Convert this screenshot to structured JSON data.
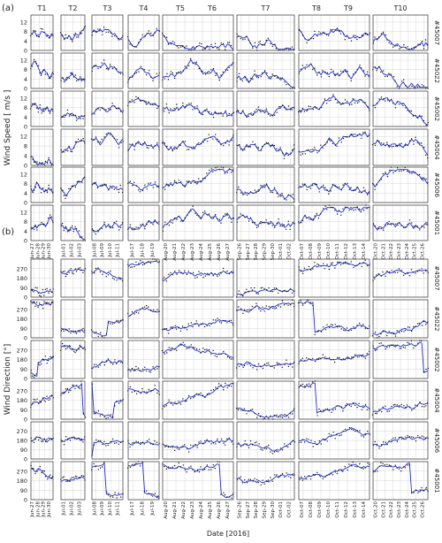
{
  "figure": {
    "panel_a_label": "(a)",
    "panel_b_label": "(b)",
    "xlabel": "Date [2016]"
  },
  "colors": {
    "model": "#1f2fd0",
    "observation": "#111111",
    "grid": "#d6d6d6",
    "frame": "#333333"
  },
  "chart_data": [
    {
      "type": "line",
      "panel": "(a)",
      "ylabel": "Wind Speed [ m/s ]",
      "yticks": [
        0,
        4,
        8,
        12
      ],
      "ylim": [
        0,
        15
      ],
      "stations": [
        "#45007",
        "#45022",
        "#45002",
        "#45004",
        "#45006",
        "#45001"
      ],
      "series": [
        {
          "style": "line",
          "color": "#1f2fd0"
        },
        {
          "style": "points",
          "color": "#111111"
        }
      ],
      "grid": true
    },
    {
      "type": "line",
      "panel": "(b)",
      "ylabel": "Wind Direction [°]",
      "yticks": [
        0,
        90,
        180,
        270
      ],
      "ylim": [
        0,
        360
      ],
      "stations": [
        "#45007",
        "#45022",
        "#45002",
        "#45004",
        "#45006",
        "#45001"
      ],
      "series": [
        {
          "style": "line",
          "color": "#1f2fd0"
        },
        {
          "style": "points",
          "color": "#111111"
        }
      ],
      "grid": true
    }
  ],
  "periods": [
    {
      "label": "T1",
      "ticks": [
        "Jun-27",
        "Jun-28",
        "Jun-29",
        "Jun-30"
      ]
    },
    {
      "label": "T2",
      "ticks": [
        "Jul-01",
        "Jul-02",
        "Jul-03"
      ]
    },
    {
      "label": "T3",
      "ticks": [
        "Jul-08",
        "Jul-09",
        "Jul-10",
        "Jul-11"
      ]
    },
    {
      "label": "T4",
      "ticks": [
        "Jul-17",
        "Jul-18",
        "Jul-19"
      ]
    },
    {
      "label": "T5 T6",
      "ticks": [
        "Aug-20",
        "Aug-21",
        "Aug-22",
        "Aug-23",
        "Aug-24",
        "Aug-25",
        "Aug-26",
        "Aug-27"
      ]
    },
    {
      "label": "T7",
      "ticks": [
        "Sep-26",
        "Sep-27",
        "Sep-28",
        "Sep-29",
        "Sep-30",
        "Oct-01",
        "Oct-02"
      ]
    },
    {
      "label": "T8 T9",
      "ticks": [
        "Oct-07",
        "Oct-08",
        "Oct-09",
        "Oct-10",
        "Oct-11",
        "Oct-12",
        "Oct-13",
        "Oct-14"
      ]
    },
    {
      "label": "T10",
      "ticks": [
        "Oct-20",
        "Oct-21",
        "Oct-22",
        "Oct-23",
        "Oct-24",
        "Oct-25",
        "Oct-26"
      ]
    }
  ]
}
